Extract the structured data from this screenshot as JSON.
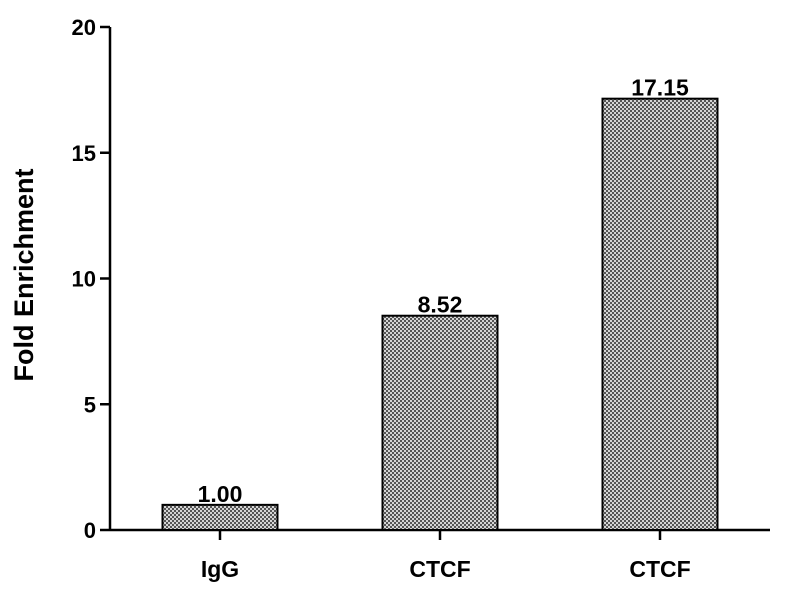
{
  "chart_data": {
    "type": "bar",
    "categories": [
      "IgG",
      "CTCF",
      "CTCF"
    ],
    "values": [
      1.0,
      8.52,
      17.15
    ],
    "data_labels": [
      "1.00",
      "8.52",
      "17.15"
    ],
    "title": "",
    "xlabel": "",
    "ylabel": "Fold Enrichment",
    "ylim": [
      0,
      20
    ],
    "yticks": [
      0,
      5,
      10,
      15,
      20
    ],
    "grid": false,
    "legend": "none",
    "bar_fill": "checkered gray",
    "colors": {
      "bar_dark": "#555555",
      "bar_light": "#d4d4d4",
      "axis": "#000000"
    }
  }
}
